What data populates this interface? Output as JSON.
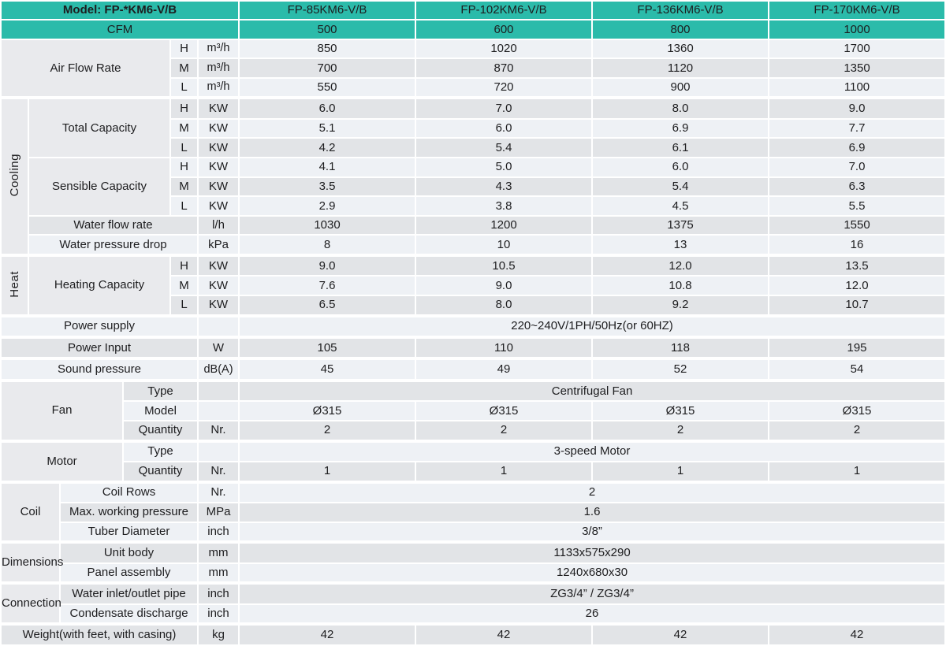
{
  "colors": {
    "teal": "#2bbbaa",
    "row_light": "#eef1f5",
    "row_dark": "#e2e4e7",
    "label_bg": "#e9eaed",
    "text": "#1d1d1f"
  },
  "table": {
    "header_rows": [
      {
        "cells": [
          {
            "t": "Model: FP-*KM6-V/B",
            "c": "tealb",
            "cs": 6,
            "n": "model-series-label"
          },
          {
            "t": "FP-85KM6-V/B",
            "c": "teal",
            "n": "model-column-1"
          },
          {
            "t": "FP-102KM6-V/B",
            "c": "teal",
            "n": "model-column-2"
          },
          {
            "t": "FP-136KM6-V/B",
            "c": "teal",
            "n": "model-column-3"
          },
          {
            "t": "FP-170KM6-V/B",
            "c": "teal",
            "n": "model-column-4"
          }
        ]
      },
      {
        "cells": [
          {
            "t": "CFM",
            "c": "teal",
            "cs": 6,
            "n": "cfm-label"
          },
          {
            "t": "500",
            "c": "teal",
            "n": "cfm-value-1"
          },
          {
            "t": "600",
            "c": "teal",
            "n": "cfm-value-2"
          },
          {
            "t": "800",
            "c": "teal",
            "n": "cfm-value-3"
          },
          {
            "t": "1000",
            "c": "teal",
            "n": "cfm-value-4"
          }
        ]
      }
    ],
    "body_rows": [
      {
        "cells": [
          {
            "t": "Air Flow Rate",
            "c": "label",
            "cs": 4,
            "rs": 3
          },
          {
            "t": "H",
            "c": "stripe"
          },
          {
            "t": "m³/h",
            "c": "stripe unitcell"
          },
          {
            "t": "850",
            "c": "stripe"
          },
          {
            "t": "1020",
            "c": "stripe"
          },
          {
            "t": "1360",
            "c": "stripe"
          },
          {
            "t": "1700",
            "c": "stripe"
          }
        ]
      },
      {
        "cells": [
          {
            "t": "M",
            "c": "stripe"
          },
          {
            "t": "m³/h",
            "c": "stripe unitcell"
          },
          {
            "t": "700",
            "c": "stripe"
          },
          {
            "t": "870",
            "c": "stripe"
          },
          {
            "t": "1120",
            "c": "stripe"
          },
          {
            "t": "1350",
            "c": "stripe"
          }
        ]
      },
      {
        "cells": [
          {
            "t": "L",
            "c": "stripe"
          },
          {
            "t": "m³/h",
            "c": "stripe unitcell"
          },
          {
            "t": "550",
            "c": "stripe"
          },
          {
            "t": "720",
            "c": "stripe"
          },
          {
            "t": "900",
            "c": "stripe"
          },
          {
            "t": "1100",
            "c": "stripe"
          }
        ]
      },
      {
        "s": true,
        "cells": [
          {
            "t": "Cooling",
            "c": "group",
            "rs": 8
          },
          {
            "t": "Total Capacity",
            "c": "label",
            "cs": 3,
            "rs": 3
          },
          {
            "t": "H",
            "c": "stripe"
          },
          {
            "t": "KW",
            "c": "stripe"
          },
          {
            "t": "6.0",
            "c": "stripe"
          },
          {
            "t": "7.0",
            "c": "stripe"
          },
          {
            "t": "8.0",
            "c": "stripe"
          },
          {
            "t": "9.0",
            "c": "stripe"
          }
        ]
      },
      {
        "cells": [
          {
            "t": "M",
            "c": "stripe"
          },
          {
            "t": "KW",
            "c": "stripe"
          },
          {
            "t": "5.1",
            "c": "stripe"
          },
          {
            "t": "6.0",
            "c": "stripe"
          },
          {
            "t": "6.9",
            "c": "stripe"
          },
          {
            "t": "7.7",
            "c": "stripe"
          }
        ]
      },
      {
        "cells": [
          {
            "t": "L",
            "c": "stripe"
          },
          {
            "t": "KW",
            "c": "stripe"
          },
          {
            "t": "4.2",
            "c": "stripe"
          },
          {
            "t": "5.4",
            "c": "stripe"
          },
          {
            "t": "6.1",
            "c": "stripe"
          },
          {
            "t": "6.9",
            "c": "stripe"
          }
        ]
      },
      {
        "cells": [
          {
            "t": "Sensible Capacity",
            "c": "label",
            "cs": 3,
            "rs": 3
          },
          {
            "t": "H",
            "c": "stripe"
          },
          {
            "t": "KW",
            "c": "stripe"
          },
          {
            "t": "4.1",
            "c": "stripe"
          },
          {
            "t": "5.0",
            "c": "stripe"
          },
          {
            "t": "6.0",
            "c": "stripe"
          },
          {
            "t": "7.0",
            "c": "stripe"
          }
        ]
      },
      {
        "cells": [
          {
            "t": "M",
            "c": "stripe"
          },
          {
            "t": "KW",
            "c": "stripe"
          },
          {
            "t": "3.5",
            "c": "stripe"
          },
          {
            "t": "4.3",
            "c": "stripe"
          },
          {
            "t": "5.4",
            "c": "stripe"
          },
          {
            "t": "6.3",
            "c": "stripe"
          }
        ]
      },
      {
        "cells": [
          {
            "t": "L",
            "c": "stripe"
          },
          {
            "t": "KW",
            "c": "stripe"
          },
          {
            "t": "2.9",
            "c": "stripe"
          },
          {
            "t": "3.8",
            "c": "stripe"
          },
          {
            "t": "4.5",
            "c": "stripe"
          },
          {
            "t": "5.5",
            "c": "stripe"
          }
        ]
      },
      {
        "cells": [
          {
            "t": "Water flow rate",
            "c": "stripe",
            "cs": 4
          },
          {
            "t": "l/h",
            "c": "stripe"
          },
          {
            "t": "1030",
            "c": "stripe"
          },
          {
            "t": "1200",
            "c": "stripe"
          },
          {
            "t": "1375",
            "c": "stripe"
          },
          {
            "t": "1550",
            "c": "stripe"
          }
        ]
      },
      {
        "cells": [
          {
            "t": "Water pressure drop",
            "c": "stripe",
            "cs": 4
          },
          {
            "t": "kPa",
            "c": "stripe"
          },
          {
            "t": "8",
            "c": "stripe"
          },
          {
            "t": "10",
            "c": "stripe"
          },
          {
            "t": "13",
            "c": "stripe"
          },
          {
            "t": "16",
            "c": "stripe"
          }
        ]
      },
      {
        "s": true,
        "cells": [
          {
            "t": "Heat",
            "c": "group",
            "rs": 3
          },
          {
            "t": "Heating Capacity",
            "c": "label",
            "cs": 3,
            "rs": 3
          },
          {
            "t": "H",
            "c": "stripe"
          },
          {
            "t": "KW",
            "c": "stripe"
          },
          {
            "t": "9.0",
            "c": "stripe"
          },
          {
            "t": "10.5",
            "c": "stripe"
          },
          {
            "t": "12.0",
            "c": "stripe"
          },
          {
            "t": "13.5",
            "c": "stripe"
          }
        ]
      },
      {
        "cells": [
          {
            "t": "M",
            "c": "stripe"
          },
          {
            "t": "KW",
            "c": "stripe"
          },
          {
            "t": "7.6",
            "c": "stripe"
          },
          {
            "t": "9.0",
            "c": "stripe"
          },
          {
            "t": "10.8",
            "c": "stripe"
          },
          {
            "t": "12.0",
            "c": "stripe"
          }
        ]
      },
      {
        "cells": [
          {
            "t": "L",
            "c": "stripe"
          },
          {
            "t": "KW",
            "c": "stripe"
          },
          {
            "t": "6.5",
            "c": "stripe"
          },
          {
            "t": "8.0",
            "c": "stripe"
          },
          {
            "t": "9.2",
            "c": "stripe"
          },
          {
            "t": "10.7",
            "c": "stripe"
          }
        ]
      },
      {
        "s": true,
        "cells": [
          {
            "t": "Power supply",
            "c": "stripe",
            "cs": 5
          },
          {
            "t": "",
            "c": "stripe"
          },
          {
            "t": "220~240V/1PH/50Hz(or 60HZ)",
            "c": "stripe",
            "cs": 4
          }
        ]
      },
      {
        "s": true,
        "cells": [
          {
            "t": "Power Input",
            "c": "stripe",
            "cs": 5
          },
          {
            "t": "W",
            "c": "stripe"
          },
          {
            "t": "105",
            "c": "stripe"
          },
          {
            "t": "110",
            "c": "stripe"
          },
          {
            "t": "118",
            "c": "stripe"
          },
          {
            "t": "195",
            "c": "stripe"
          }
        ]
      },
      {
        "s": true,
        "cells": [
          {
            "t": "Sound pressure",
            "c": "stripe",
            "cs": 5
          },
          {
            "t": "dB(A)",
            "c": "stripe unitcell"
          },
          {
            "t": "45",
            "c": "stripe"
          },
          {
            "t": "49",
            "c": "stripe"
          },
          {
            "t": "52",
            "c": "stripe"
          },
          {
            "t": "54",
            "c": "stripe"
          }
        ]
      },
      {
        "s": true,
        "cells": [
          {
            "t": "Fan",
            "c": "label",
            "cs": 3,
            "rs": 3
          },
          {
            "t": "Type",
            "c": "stripe",
            "cs": 2
          },
          {
            "t": "",
            "c": "stripe"
          },
          {
            "t": "Centrifugal Fan",
            "c": "stripe",
            "cs": 4
          }
        ]
      },
      {
        "cells": [
          {
            "t": "Model",
            "c": "stripe",
            "cs": 2
          },
          {
            "t": "",
            "c": "stripe"
          },
          {
            "t": "Ø315",
            "c": "stripe"
          },
          {
            "t": "Ø315",
            "c": "stripe"
          },
          {
            "t": "Ø315",
            "c": "stripe"
          },
          {
            "t": "Ø315",
            "c": "stripe"
          }
        ]
      },
      {
        "cells": [
          {
            "t": "Quantity",
            "c": "stripe",
            "cs": 2
          },
          {
            "t": "Nr.",
            "c": "stripe"
          },
          {
            "t": "2",
            "c": "stripe"
          },
          {
            "t": "2",
            "c": "stripe"
          },
          {
            "t": "2",
            "c": "stripe"
          },
          {
            "t": "2",
            "c": "stripe"
          }
        ]
      },
      {
        "s": true,
        "cells": [
          {
            "t": "Motor",
            "c": "label",
            "cs": 3,
            "rs": 2
          },
          {
            "t": "Type",
            "c": "stripe",
            "cs": 2
          },
          {
            "t": "",
            "c": "stripe"
          },
          {
            "t": "3-speed Motor",
            "c": "stripe",
            "cs": 4
          }
        ]
      },
      {
        "cells": [
          {
            "t": "Quantity",
            "c": "stripe",
            "cs": 2
          },
          {
            "t": "Nr.",
            "c": "stripe"
          },
          {
            "t": "1",
            "c": "stripe"
          },
          {
            "t": "1",
            "c": "stripe"
          },
          {
            "t": "1",
            "c": "stripe"
          },
          {
            "t": "1",
            "c": "stripe"
          }
        ]
      },
      {
        "s": true,
        "cells": [
          {
            "t": "Coil",
            "c": "label",
            "cs": 2,
            "rs": 3
          },
          {
            "t": "Coil Rows",
            "c": "stripe",
            "cs": 3
          },
          {
            "t": "Nr.",
            "c": "stripe"
          },
          {
            "t": "2",
            "c": "stripe",
            "cs": 4
          }
        ]
      },
      {
        "cells": [
          {
            "t": "Max. working pressure",
            "c": "stripe",
            "cs": 3
          },
          {
            "t": "MPa",
            "c": "stripe"
          },
          {
            "t": "1.6",
            "c": "stripe",
            "cs": 4
          }
        ]
      },
      {
        "cells": [
          {
            "t": "Tuber Diameter",
            "c": "stripe",
            "cs": 3
          },
          {
            "t": "inch",
            "c": "stripe"
          },
          {
            "t": "3/8”",
            "c": "stripe",
            "cs": 4
          }
        ]
      },
      {
        "s": true,
        "cells": [
          {
            "t": "Dimensions",
            "c": "label",
            "cs": 2,
            "rs": 2
          },
          {
            "t": "Unit body",
            "c": "stripe",
            "cs": 3
          },
          {
            "t": "mm",
            "c": "stripe"
          },
          {
            "t": "1133x575x290",
            "c": "stripe",
            "cs": 4
          }
        ]
      },
      {
        "cells": [
          {
            "t": "Panel assembly",
            "c": "stripe",
            "cs": 3
          },
          {
            "t": "mm",
            "c": "stripe"
          },
          {
            "t": "1240x680x30",
            "c": "stripe",
            "cs": 4
          }
        ]
      },
      {
        "s": true,
        "cells": [
          {
            "t": "Connection",
            "c": "label",
            "cs": 2,
            "rs": 2
          },
          {
            "t": "Water inlet/outlet pipe",
            "c": "stripe",
            "cs": 3
          },
          {
            "t": "inch",
            "c": "stripe"
          },
          {
            "t": "ZG3/4” / ZG3/4”",
            "c": "stripe",
            "cs": 4
          }
        ]
      },
      {
        "cells": [
          {
            "t": "Condensate discharge",
            "c": "stripe",
            "cs": 3
          },
          {
            "t": "inch",
            "c": "stripe"
          },
          {
            "t": "26",
            "c": "stripe",
            "cs": 4
          }
        ]
      },
      {
        "s": true,
        "cells": [
          {
            "t": "Weight(with feet, with casing)",
            "c": "stripe",
            "cs": 5
          },
          {
            "t": "kg",
            "c": "stripe"
          },
          {
            "t": "42",
            "c": "stripe"
          },
          {
            "t": "42",
            "c": "stripe"
          },
          {
            "t": "42",
            "c": "stripe"
          },
          {
            "t": "42",
            "c": "stripe"
          }
        ]
      }
    ]
  }
}
